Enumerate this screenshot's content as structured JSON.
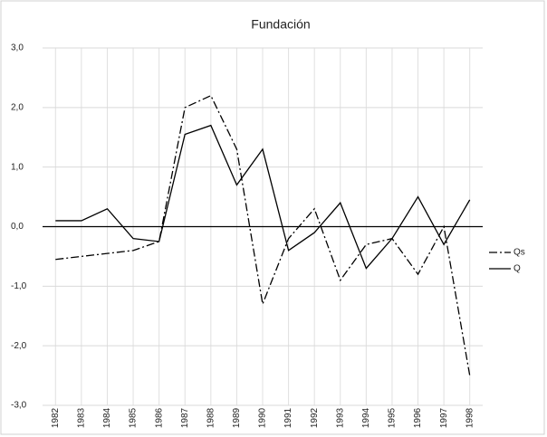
{
  "chart_data": {
    "type": "line",
    "title": "Fundación",
    "categories": [
      "1982",
      "1983",
      "1984",
      "1985",
      "1986",
      "1987",
      "1988",
      "1989",
      "1990",
      "1991",
      "1992",
      "1993",
      "1994",
      "1995",
      "1996",
      "1997",
      "1998"
    ],
    "series": [
      {
        "name": "Qs",
        "color": "#000000",
        "style": "dashdot",
        "values": [
          -0.55,
          -0.5,
          -0.45,
          -0.4,
          -0.25,
          2.0,
          2.2,
          1.3,
          -1.3,
          -0.2,
          0.3,
          -0.9,
          -0.3,
          -0.2,
          -0.8,
          0.0,
          -2.5
        ]
      },
      {
        "name": "Q",
        "color": "#000000",
        "style": "solid",
        "values": [
          0.1,
          0.1,
          0.3,
          -0.2,
          -0.25,
          1.55,
          1.7,
          0.7,
          1.3,
          -0.4,
          -0.1,
          0.4,
          -0.7,
          -0.2,
          0.5,
          -0.3,
          0.45
        ]
      }
    ],
    "ylim": [
      -3,
      3
    ],
    "yticks": [
      {
        "value": -3,
        "label": "-3,0"
      },
      {
        "value": -2,
        "label": "-2,0"
      },
      {
        "value": -1,
        "label": "-1,0"
      },
      {
        "value": 0,
        "label": "0,0"
      },
      {
        "value": 1,
        "label": "1,0"
      },
      {
        "value": 2,
        "label": "2,0"
      },
      {
        "value": 3,
        "label": "3,0"
      }
    ],
    "grid": true,
    "legend": "right"
  }
}
